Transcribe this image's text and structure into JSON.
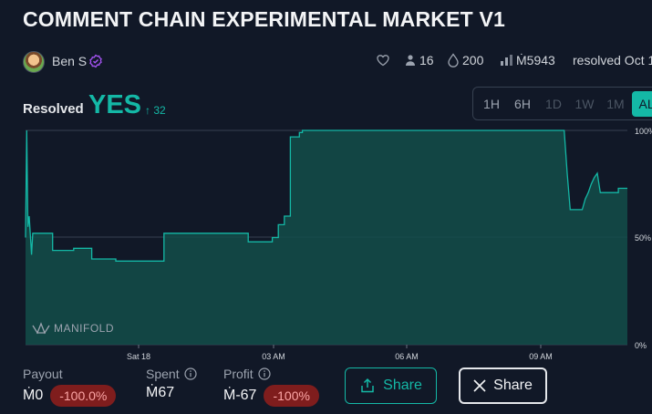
{
  "market": {
    "title": "COMMENT CHAIN EXPERIMENTAL MARKET V1",
    "author": "Ben S",
    "traders": "16",
    "liquidity": "200",
    "volume": "Ṁ5943",
    "resolved_text": "resolved Oct 1"
  },
  "resolution": {
    "label": "Resolved",
    "value": "YES",
    "change": "32"
  },
  "timeframes": [
    {
      "label": "1H",
      "state": "enabled"
    },
    {
      "label": "6H",
      "state": "enabled"
    },
    {
      "label": "1D",
      "state": "disabled"
    },
    {
      "label": "1W",
      "state": "disabled"
    },
    {
      "label": "1M",
      "state": "disabled"
    },
    {
      "label": "ALL",
      "state": "active"
    }
  ],
  "chart_data": {
    "type": "area",
    "watermark": "MANIFOLD",
    "x_ticks": [
      "Sat 18",
      "03 AM",
      "06 AM",
      "09 AM"
    ],
    "y_ticks": [
      "100%",
      "50%",
      "0%"
    ],
    "ylim": [
      0,
      100
    ],
    "grid": true,
    "color": "#14b8a6",
    "series": [
      {
        "points": [
          [
            0.0,
            50
          ],
          [
            0.002,
            100
          ],
          [
            0.004,
            55
          ],
          [
            0.006,
            60
          ],
          [
            0.01,
            42
          ],
          [
            0.012,
            52
          ],
          [
            0.045,
            52
          ],
          [
            0.045,
            44
          ],
          [
            0.08,
            44
          ],
          [
            0.08,
            45
          ],
          [
            0.11,
            45
          ],
          [
            0.11,
            40
          ],
          [
            0.15,
            40
          ],
          [
            0.15,
            39
          ],
          [
            0.23,
            39
          ],
          [
            0.23,
            52
          ],
          [
            0.37,
            52
          ],
          [
            0.37,
            48
          ],
          [
            0.41,
            48
          ],
          [
            0.41,
            50
          ],
          [
            0.42,
            50
          ],
          [
            0.42,
            56
          ],
          [
            0.43,
            56
          ],
          [
            0.43,
            60
          ],
          [
            0.44,
            60
          ],
          [
            0.44,
            97
          ],
          [
            0.455,
            97
          ],
          [
            0.455,
            99
          ],
          [
            0.46,
            99
          ],
          [
            0.46,
            100
          ],
          [
            0.895,
            100
          ],
          [
            0.9,
            80
          ],
          [
            0.905,
            63
          ],
          [
            0.925,
            63
          ],
          [
            0.93,
            68
          ],
          [
            0.935,
            71
          ],
          [
            0.94,
            75
          ],
          [
            0.945,
            78
          ],
          [
            0.95,
            80
          ],
          [
            0.955,
            71
          ],
          [
            0.985,
            71
          ],
          [
            0.985,
            73
          ],
          [
            1.0,
            73
          ]
        ]
      }
    ]
  },
  "position": {
    "payout_label": "Payout",
    "payout_value": "Ṁ0",
    "payout_pct": "-100.0%",
    "spent_label": "Spent",
    "spent_value": "Ṁ67",
    "profit_label": "Profit",
    "profit_value": "Ṁ-67",
    "profit_pct": "-100%"
  },
  "actions": {
    "share_label": "Share",
    "x_share_label": "Share"
  }
}
